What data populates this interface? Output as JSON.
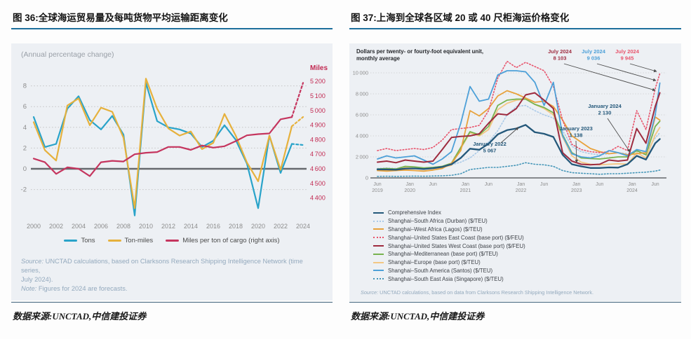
{
  "page": {
    "figure36": {
      "title": "图 36:全球海运贸易量及每吨货物平均运输距离变化",
      "datasource": "数据来源:UNCTAD,中信建投证券"
    },
    "figure37": {
      "title": "图 37:上海到全球各区域 20 或 40 尺柜海运价格变化",
      "datasource": "数据来源:UNCTAD,中信建投证券"
    }
  },
  "chart_data": [
    {
      "id": "fig36",
      "type": "line",
      "title": "全球海运贸易量及每吨货物平均运输距离变化",
      "subtitle": "(Annual percentage change)",
      "right_axis_title": "Miles",
      "grid": "dotted horizontal gridlines, solid dark zero line",
      "legend_position": "bottom",
      "x": [
        2000,
        2001,
        2002,
        2003,
        2004,
        2005,
        2006,
        2007,
        2008,
        2009,
        2010,
        2011,
        2012,
        2013,
        2014,
        2015,
        2016,
        2017,
        2018,
        2019,
        2020,
        2021,
        2022,
        2023,
        2024
      ],
      "x_ticks": [
        2000,
        2002,
        2004,
        2006,
        2008,
        2010,
        2012,
        2014,
        2016,
        2018,
        2020,
        2022,
        2024
      ],
      "yticks_left": [
        8,
        6,
        4,
        2,
        0,
        -2
      ],
      "ylim_left": [
        -5.2,
        9.2
      ],
      "yticks_right": [
        5200,
        5100,
        5000,
        4900,
        4800,
        4700,
        4600,
        4500,
        4400
      ],
      "ylim_right": [
        4400,
        5200
      ],
      "series": [
        {
          "name": "Tons",
          "axis": "left",
          "color": "#29a3c9",
          "style": "solid",
          "last_segment_forecast_dashed": true,
          "values": [
            5.0,
            2.1,
            2.4,
            5.8,
            7.0,
            4.7,
            3.8,
            5.1,
            3.3,
            -4.5,
            8.3,
            4.6,
            4.0,
            3.8,
            3.4,
            2.1,
            2.7,
            4.2,
            2.8,
            0.5,
            -3.8,
            3.2,
            -0.4,
            2.4,
            2.3
          ]
        },
        {
          "name": "Ton-miles",
          "axis": "left",
          "color": "#e6b13c",
          "style": "solid",
          "last_segment_forecast_dashed": true,
          "values": [
            4.5,
            1.8,
            0.8,
            6.1,
            6.8,
            4.2,
            5.9,
            5.5,
            3.0,
            -3.8,
            8.7,
            5.8,
            3.9,
            3.2,
            3.6,
            1.9,
            2.5,
            5.3,
            3.2,
            0.6,
            -1.2,
            3.2,
            -0.1,
            4.1,
            5.0
          ]
        },
        {
          "name": "Miles per ton of cargo (right axis)",
          "axis": "right",
          "color": "#c5355e",
          "style": "solid",
          "last_segment_forecast_dashed": true,
          "values": [
            4670,
            4645,
            4565,
            4610,
            4600,
            4550,
            4645,
            4655,
            4650,
            4700,
            4710,
            4715,
            4750,
            4750,
            4730,
            4760,
            4745,
            4755,
            4790,
            4830,
            4838,
            4843,
            4940,
            4955,
            5190
          ]
        }
      ],
      "note_lines": [
        [
          "Source:",
          " UNCTAD calculations, based on Clarksons Research Shipping Intelligence Network (time series,"
        ],
        [
          "",
          "July 2024)."
        ],
        [
          "Note:",
          " Figures for 2024 are forecasts."
        ]
      ]
    },
    {
      "id": "fig37",
      "type": "line",
      "title": "上海到全球各区域 20 或 40 尺柜海运价格变化",
      "subtitle_lines": [
        "Dollars per twenty- or fourty-foot equivalent unit,",
        "monthly average"
      ],
      "x_unit": "months since Jun 2019 (last point Jul 2024)",
      "x_months": [
        0,
        2,
        4,
        6,
        8,
        10,
        12,
        14,
        16,
        18,
        20,
        22,
        24,
        26,
        28,
        30,
        32,
        34,
        36,
        38,
        40,
        42,
        44,
        46,
        48,
        50,
        52,
        54,
        56,
        58,
        60,
        61
      ],
      "x_ticks": [
        {
          "m": 0,
          "month": "Jun",
          "year": "2019"
        },
        {
          "m": 7,
          "month": "Jan",
          "year": "2020"
        },
        {
          "m": 12,
          "month": "Jun",
          "year": ""
        },
        {
          "m": 19,
          "month": "Jan",
          "year": "2021"
        },
        {
          "m": 24,
          "month": "Jun",
          "year": ""
        },
        {
          "m": 31,
          "month": "Jan",
          "year": "2022"
        },
        {
          "m": 36,
          "month": "Jun",
          "year": ""
        },
        {
          "m": 43,
          "month": "Jan",
          "year": "2023"
        },
        {
          "m": 48,
          "month": "Jun",
          "year": ""
        },
        {
          "m": 55,
          "month": "Jan",
          "year": "2024"
        },
        {
          "m": 60,
          "month": "Jun",
          "year": ""
        }
      ],
      "yticks": [
        10000,
        8000,
        6000,
        4000,
        2000,
        0
      ],
      "ylim": [
        0,
        11500
      ],
      "grid": "dotted horizontal gridlines, solid gray baseline",
      "legend_position": "bottom-left list",
      "series": [
        {
          "name": "Comprehensive Index",
          "color": "#24587a",
          "style": "solid",
          "width": 2.3,
          "values": [
            810,
            800,
            780,
            890,
            900,
            850,
            920,
            1050,
            1300,
            1900,
            2780,
            2680,
            3250,
            4150,
            4550,
            4700,
            5050,
            4350,
            4200,
            3900,
            2200,
            1300,
            1100,
            950,
            950,
            1000,
            980,
            1300,
            2100,
            1750,
            3300,
            3700
          ]
        },
        {
          "name": "Shanghai–South Africa (Durban) ($/TEU)",
          "color": "#a9c9e8",
          "style": "dotted",
          "width": 1.6,
          "values": [
            900,
            950,
            900,
            950,
            1000,
            950,
            1000,
            1100,
            1250,
            1500,
            1900,
            2600,
            3400,
            4500,
            6000,
            6800,
            6900,
            6400,
            6000,
            5700,
            4500,
            3000,
            2500,
            2300,
            2200,
            2300,
            2400,
            2300,
            2500,
            2400,
            3800,
            4300
          ]
        },
        {
          "name": "Shanghai–West Africa (Lagos) ($/TEU)",
          "color": "#e8a23c",
          "style": "solid",
          "width": 1.8,
          "values": [
            700,
            650,
            700,
            750,
            700,
            650,
            750,
            900,
            1400,
            2600,
            6400,
            5900,
            6600,
            7800,
            8300,
            8000,
            7600,
            7200,
            7300,
            6800,
            5500,
            4000,
            3400,
            2800,
            2500,
            2300,
            2400,
            2200,
            2300,
            2400,
            5800,
            5500
          ]
        },
        {
          "name": "Shanghai–United States East Coast (base port) ($/FEU)",
          "color": "#e8536b",
          "style": "dotted",
          "width": 1.6,
          "values": [
            2600,
            2800,
            2600,
            2700,
            2800,
            2700,
            2900,
            3600,
            4600,
            4700,
            4800,
            5000,
            6400,
            9500,
            11100,
            10500,
            11000,
            10600,
            10200,
            8700,
            5500,
            3200,
            2700,
            2500,
            2400,
            2500,
            3000,
            2600,
            6400,
            4600,
            8500,
            9945
          ]
        },
        {
          "name": "Shanghai–United States West Coast (base port) ($/FEU)",
          "color": "#9e2b3f",
          "style": "solid",
          "width": 2.0,
          "values": [
            1500,
            1600,
            1450,
            1700,
            1600,
            1500,
            1600,
            2700,
            3850,
            3950,
            4000,
            4200,
            5200,
            6100,
            6000,
            6600,
            7900,
            8100,
            7400,
            6600,
            2400,
            1600,
            1300,
            1250,
            1300,
            1700,
            1600,
            1700,
            4700,
            3300,
            6800,
            8103
          ]
        },
        {
          "name": "Shanghai–Mediterranean (base port) ($/TEU)",
          "color": "#77b34f",
          "style": "solid",
          "width": 1.8,
          "values": [
            850,
            900,
            850,
            1100,
            1050,
            950,
            1000,
            1100,
            1400,
            2900,
            4400,
            4100,
            4900,
            6900,
            7400,
            7500,
            7500,
            7000,
            6700,
            6200,
            4100,
            2400,
            1900,
            1850,
            1800,
            1900,
            2000,
            2000,
            2600,
            2200,
            4900,
            5400
          ]
        },
        {
          "name": "Shanghai–Europe (base port) ($/TEU)",
          "color": "#f3c784",
          "style": "solid",
          "width": 1.8,
          "values": [
            700,
            750,
            700,
            1000,
            900,
            850,
            900,
            1000,
            1200,
            2800,
            4300,
            4000,
            4600,
            6500,
            7100,
            7400,
            7500,
            7000,
            6600,
            6000,
            3900,
            2100,
            1500,
            1300,
            1250,
            1300,
            1350,
            1300,
            2400,
            1900,
            4100,
            4800
          ]
        },
        {
          "name": "Shanghai–South America (Santos) ($/TEU)",
          "color": "#4da0d8",
          "style": "solid",
          "width": 1.8,
          "values": [
            1800,
            2100,
            1900,
            2000,
            2100,
            1700,
            1300,
            1800,
            2500,
            5200,
            8700,
            7300,
            7500,
            9800,
            10200,
            10200,
            10100,
            9100,
            6900,
            9100,
            4000,
            2300,
            2000,
            1900,
            2100,
            2600,
            2400,
            2100,
            2700,
            2500,
            6000,
            9036
          ]
        },
        {
          "name": "Shanghai–South East Asia (Singapore) ($/TEU)",
          "color": "#4596b8",
          "style": "dotted",
          "width": 1.6,
          "values": [
            150,
            160,
            150,
            160,
            170,
            160,
            180,
            200,
            250,
            400,
            800,
            900,
            1000,
            1000,
            1100,
            1200,
            1450,
            1300,
            1250,
            1100,
            700,
            500,
            450,
            400,
            350,
            400,
            400,
            450,
            500,
            550,
            650,
            750
          ]
        }
      ],
      "annotations": [
        {
          "label": "July 2024",
          "value": "8 103",
          "color": "#9e2b3f",
          "tx": 300,
          "ty": 14,
          "x1": 306,
          "y1": 29,
          "x2": 436,
          "y2": 67
        },
        {
          "label": "July 2024",
          "value": "9 036",
          "color": "#4da0d8",
          "tx": 348,
          "ty": 14,
          "x1": 353,
          "y1": 29,
          "x2": 437,
          "y2": 53
        },
        {
          "label": "July 2024",
          "value": "9 945",
          "color": "#e8536b",
          "tx": 396,
          "ty": 14,
          "x1": 400,
          "y1": 29,
          "x2": 438,
          "y2": 40
        },
        {
          "label": "January 2024",
          "value": "2 130",
          "color": "#24587a",
          "tx": 364,
          "ty": 92,
          "x1": 368,
          "y1": 107,
          "x2": 400,
          "y2": 155
        },
        {
          "label": "January 2023",
          "value": "1 138",
          "color": "#24587a",
          "tx": 323,
          "ty": 124,
          "x1": 323,
          "y1": 139,
          "x2": 324,
          "y2": 170
        },
        {
          "label": "January 2022",
          "value": "5 067",
          "color": "#24587a",
          "tx": 200,
          "ty": 146,
          "x1": 216,
          "y1": 142,
          "x2": 241,
          "y2": 120
        }
      ],
      "source_line": [
        [
          "Source:",
          " UNCTAD calculations, based on data from Clarksons Research Shipping Intelligence Network."
        ]
      ]
    }
  ]
}
